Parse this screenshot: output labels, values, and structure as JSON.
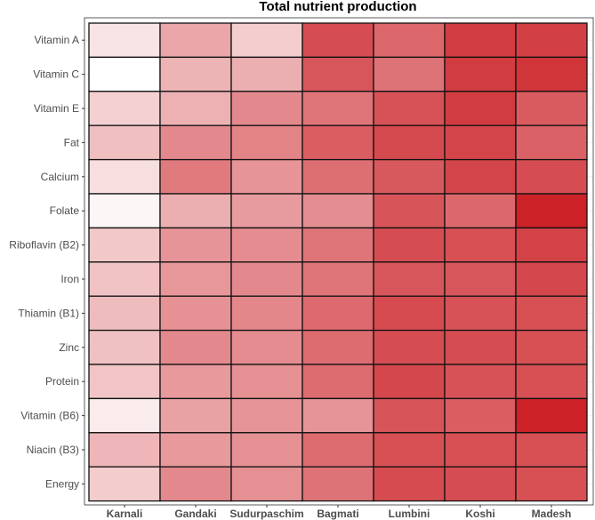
{
  "chart_data": {
    "type": "heatmap",
    "title": "Total nutrient production",
    "xlabel": "",
    "ylabel": "",
    "x_categories": [
      "Karnali",
      "Gandaki",
      "Sudurpaschim",
      "Bagmati",
      "Lumbini",
      "Koshi",
      "Madesh"
    ],
    "y_categories": [
      "Vitamin A",
      "Vitamin C",
      "Vitamin E",
      "Fat",
      "Calcium",
      "Folate",
      "Riboflavin (B2)",
      "Iron",
      "Thiamin (B1)",
      "Zinc",
      "Protein",
      "Vitamin (B6)",
      "Niacin (B3)",
      "Energy"
    ],
    "values": [
      [
        0.12,
        0.4,
        0.22,
        0.8,
        0.68,
        0.88,
        0.86
      ],
      [
        0.0,
        0.34,
        0.36,
        0.76,
        0.63,
        0.88,
        0.91
      ],
      [
        0.21,
        0.35,
        0.53,
        0.62,
        0.78,
        0.88,
        0.74
      ],
      [
        0.29,
        0.53,
        0.56,
        0.73,
        0.82,
        0.84,
        0.71
      ],
      [
        0.15,
        0.6,
        0.48,
        0.65,
        0.75,
        0.84,
        0.8
      ],
      [
        0.04,
        0.36,
        0.45,
        0.51,
        0.77,
        0.68,
        1.0
      ],
      [
        0.25,
        0.48,
        0.52,
        0.62,
        0.8,
        0.79,
        0.85
      ],
      [
        0.27,
        0.47,
        0.53,
        0.62,
        0.76,
        0.76,
        0.83
      ],
      [
        0.3,
        0.49,
        0.54,
        0.67,
        0.81,
        0.78,
        0.79
      ],
      [
        0.28,
        0.53,
        0.52,
        0.66,
        0.8,
        0.8,
        0.79
      ],
      [
        0.26,
        0.46,
        0.5,
        0.66,
        0.83,
        0.78,
        0.79
      ],
      [
        0.09,
        0.42,
        0.48,
        0.48,
        0.77,
        0.73,
        1.0
      ],
      [
        0.33,
        0.46,
        0.5,
        0.66,
        0.79,
        0.79,
        0.79
      ],
      [
        0.23,
        0.53,
        0.5,
        0.63,
        0.81,
        0.8,
        0.79
      ]
    ],
    "color_low": "#ffffff",
    "color_high": "#cb2127",
    "grid": true,
    "legend": "none"
  }
}
